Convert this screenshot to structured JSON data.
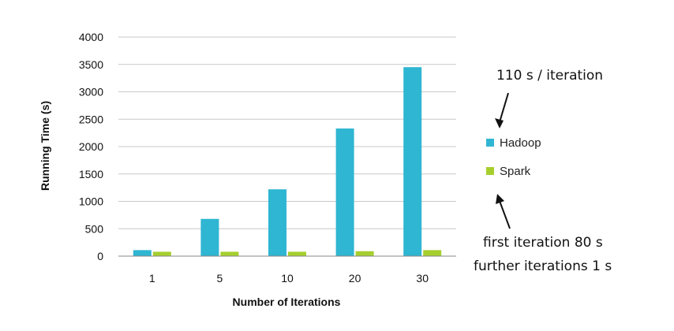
{
  "chart_data": {
    "type": "bar",
    "categories": [
      "1",
      "5",
      "10",
      "20",
      "30"
    ],
    "series": [
      {
        "name": "Hadoop",
        "values": [
          110,
          680,
          1220,
          2330,
          3450
        ],
        "color": "#2fb6d2"
      },
      {
        "name": "Spark",
        "values": [
          80,
          80,
          80,
          90,
          110
        ],
        "color": "#a6cf2e"
      }
    ],
    "xlabel": "Number of Iterations",
    "ylabel": "Running Time (s)",
    "ylim": [
      0,
      4000
    ],
    "yticks": [
      0,
      500,
      1000,
      1500,
      2000,
      2500,
      3000,
      3500,
      4000
    ],
    "grid": true,
    "legend_position": "right"
  },
  "annotations": {
    "top": "110 s / iteration",
    "bottom_line1": "first iteration 80 s",
    "bottom_line2": "further iterations 1 s"
  }
}
